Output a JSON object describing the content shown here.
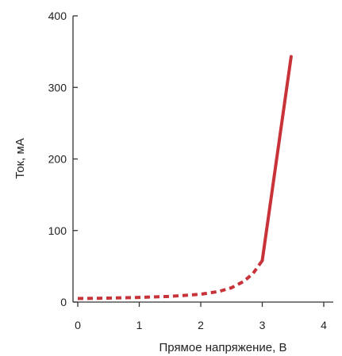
{
  "chart_data": {
    "type": "line",
    "title": "",
    "xlabel": "Прямое напряжение, В",
    "ylabel": "Ток, мА",
    "xlim": [
      0,
      4
    ],
    "ylim": [
      0,
      400
    ],
    "x_ticks": [
      "0",
      "1",
      "2",
      "3",
      "4"
    ],
    "y_ticks": [
      "0",
      "100",
      "200",
      "300",
      "400"
    ],
    "grid": false,
    "legend": "none",
    "line_color": "#c8333a",
    "axis_color": "#333333",
    "series": [
      {
        "style": "dashed",
        "points": [
          [
            0,
            5
          ],
          [
            0.5,
            5.5
          ],
          [
            1,
            6.5
          ],
          [
            1.5,
            8
          ],
          [
            2,
            11
          ],
          [
            2.3,
            15
          ],
          [
            2.5,
            20
          ],
          [
            2.7,
            29
          ],
          [
            2.85,
            40
          ],
          [
            3.0,
            58
          ]
        ]
      },
      {
        "style": "solid",
        "points": [
          [
            3.0,
            58
          ],
          [
            3.47,
            343
          ]
        ]
      }
    ]
  }
}
